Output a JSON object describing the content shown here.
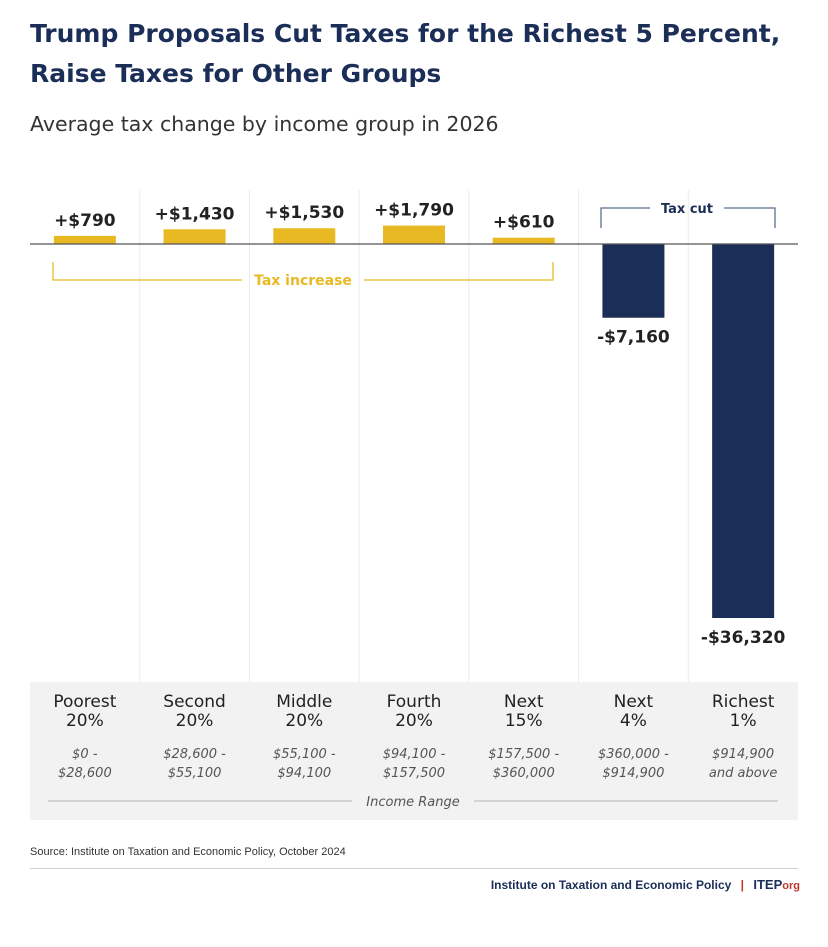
{
  "chart_data": {
    "type": "bar",
    "title": "Trump Proposals Cut Taxes for the Richest 5 Percent, Raise Taxes for Other Groups",
    "subtitle": "Average tax change by income group in 2026",
    "xlabel": "Income Range",
    "ylabel": "",
    "ylim": [
      -36320,
      1790
    ],
    "categories": [
      "Poorest 20%",
      "Second 20%",
      "Middle 20%",
      "Fourth 20%",
      "Next 15%",
      "Next 4%",
      "Richest 1%"
    ],
    "group_names": [
      "Poorest",
      "Second",
      "Middle",
      "Fourth",
      "Next",
      "Next",
      "Richest"
    ],
    "group_shares": [
      "20%",
      "20%",
      "20%",
      "20%",
      "15%",
      "4%",
      "1%"
    ],
    "income_low": [
      "$0 -",
      "$28,600 -",
      "$55,100 -",
      "$94,100 -",
      "$157,500 -",
      "$360,000 -",
      "$914,900"
    ],
    "income_high": [
      "$28,600",
      "$55,100",
      "$94,100",
      "$157,500",
      "$360,000",
      "$914,900",
      "and above"
    ],
    "values": [
      790,
      1430,
      1530,
      1790,
      610,
      -7160,
      -36320
    ],
    "labels": [
      "+$790",
      "+$1,430",
      "+$1,530",
      "+$1,790",
      "+$610",
      "-$7,160",
      "-$36,320"
    ],
    "annotations": {
      "increase": "Tax increase",
      "cut": "Tax cut"
    },
    "colors": {
      "increase": "#e8b923",
      "cut": "#1a2e57",
      "title": "#1a2e57",
      "panel": "#f2f2f2"
    }
  },
  "source": "Source: Institute on Taxation and Economic Policy, October 2024",
  "footer": {
    "org": "Institute on Taxation and Economic Policy",
    "separator": "|",
    "logo": "ITEP",
    "logo_suffix": "org"
  }
}
